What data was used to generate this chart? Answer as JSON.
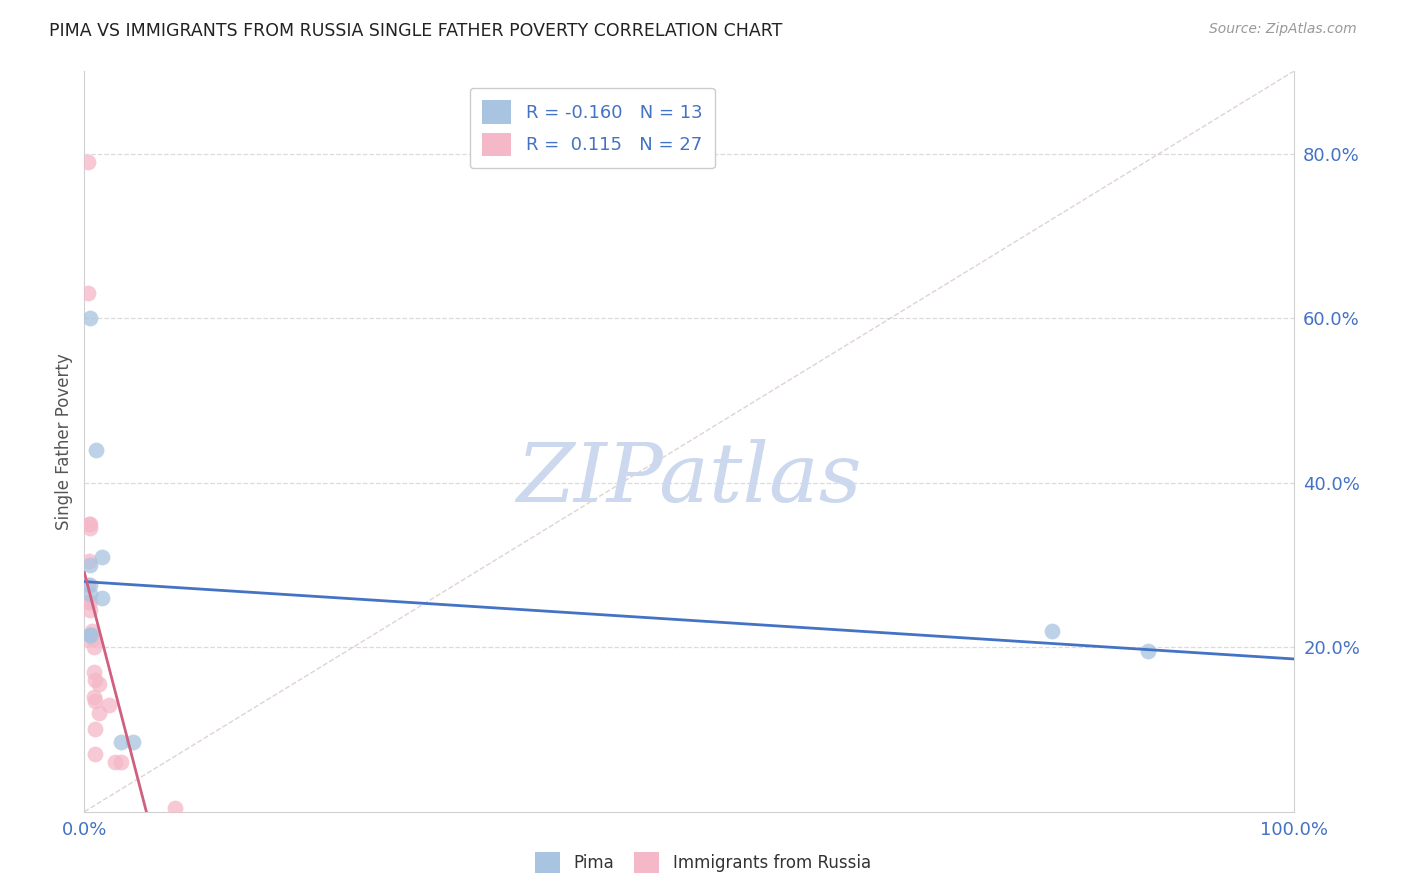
{
  "title": "PIMA VS IMMIGRANTS FROM RUSSIA SINGLE FATHER POVERTY CORRELATION CHART",
  "source": "Source: ZipAtlas.com",
  "ylabel": "Single Father Poverty",
  "legend_label1": "Pima",
  "legend_label2": "Immigrants from Russia",
  "R_pima": -0.16,
  "N_pima": 13,
  "R_russia": 0.115,
  "N_russia": 27,
  "pima_color": "#a8c4e0",
  "russia_color": "#f4b8c8",
  "pima_line_color": "#4472c4",
  "russia_line_color": "#d06080",
  "diagonal_color": "#d8c8c8",
  "background_color": "#ffffff",
  "grid_color": "#d8d8d8",
  "axis_color": "#4472c4",
  "text_color": "#333333",
  "pima_points_x": [
    0.005,
    0.005,
    0.01,
    0.005,
    0.005,
    0.005,
    0.005,
    0.015,
    0.015,
    0.03,
    0.04,
    0.8,
    0.88
  ],
  "pima_points_y": [
    0.6,
    0.3,
    0.44,
    0.275,
    0.265,
    0.215,
    0.215,
    0.26,
    0.31,
    0.085,
    0.085,
    0.22,
    0.195
  ],
  "russia_points_x": [
    0.003,
    0.003,
    0.003,
    0.003,
    0.003,
    0.004,
    0.004,
    0.005,
    0.005,
    0.005,
    0.005,
    0.006,
    0.007,
    0.008,
    0.008,
    0.008,
    0.008,
    0.009,
    0.009,
    0.009,
    0.009,
    0.012,
    0.012,
    0.02,
    0.025,
    0.03,
    0.075
  ],
  "russia_points_y": [
    0.79,
    0.63,
    0.275,
    0.255,
    0.21,
    0.35,
    0.305,
    0.35,
    0.345,
    0.255,
    0.245,
    0.22,
    0.215,
    0.21,
    0.2,
    0.17,
    0.14,
    0.16,
    0.135,
    0.1,
    0.07,
    0.155,
    0.12,
    0.13,
    0.06,
    0.06,
    0.005
  ],
  "xlim": [
    0.0,
    1.0
  ],
  "ylim": [
    0.0,
    0.9
  ],
  "ytick_vals": [
    0.2,
    0.4,
    0.6,
    0.8
  ],
  "ytick_labels": [
    "20.0%",
    "40.0%",
    "60.0%",
    "80.0%"
  ],
  "xtick_vals": [
    0.0,
    1.0
  ],
  "xtick_labels": [
    "0.0%",
    "100.0%"
  ],
  "watermark": "ZIPatlas",
  "watermark_color": "#ccd8ee",
  "marker_size": 130,
  "marker_alpha": 0.75
}
